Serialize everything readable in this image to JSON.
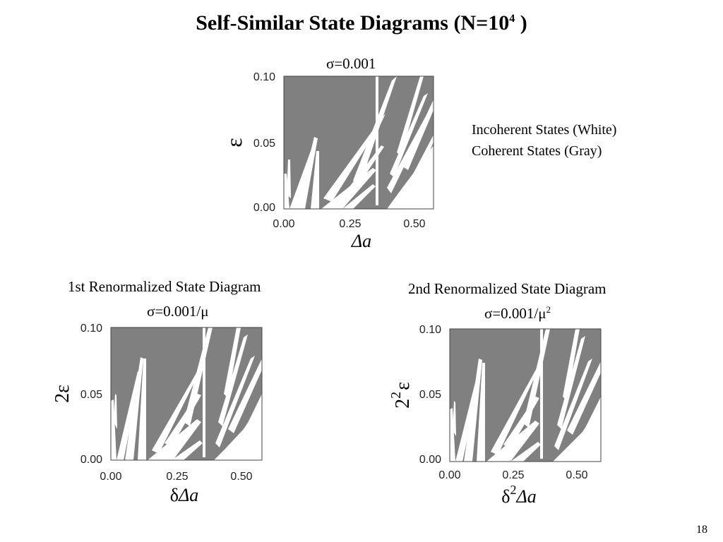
{
  "slide": {
    "title_main": "Self-Similar State Diagrams (N=10",
    "title_exp": "4",
    "title_end": " )",
    "page_number": "18"
  },
  "legend": {
    "incoherent": "Incoherent States (White)",
    "coherent": "Coherent States (Gray)"
  },
  "colors": {
    "coherent": "#808080",
    "incoherent": "#ffffff",
    "frame": "#444444"
  },
  "diagrams": [
    {
      "id": "top",
      "section_title": "",
      "sigma_main": "σ=0.001",
      "sigma_sup": "",
      "ylabel": "ε",
      "ylabel_prefix": "",
      "ylabel_prefix_sup": "",
      "xlabel_main": "Δa",
      "xlabel_prefix": "",
      "xlabel_prefix_sup": "",
      "xticks": [
        "0.00",
        "0.25",
        "0.50"
      ],
      "yticks": [
        "0.00",
        "0.05",
        "0.10"
      ]
    },
    {
      "id": "first",
      "section_title": "1st Renormalized State Diagram",
      "sigma_main": "σ=0.001/μ",
      "sigma_sup": "",
      "ylabel": "ε",
      "ylabel_prefix": "2",
      "ylabel_prefix_sup": "",
      "xlabel_main": "Δa",
      "xlabel_prefix": "δ",
      "xlabel_prefix_sup": "",
      "xticks": [
        "0.00",
        "0.25",
        "0.50"
      ],
      "yticks": [
        "0.00",
        "0.05",
        "0.10"
      ]
    },
    {
      "id": "second",
      "section_title": "2nd Renormalized State Diagram",
      "sigma_main": "σ=0.001/μ",
      "sigma_sup": "2",
      "ylabel": "ε",
      "ylabel_prefix": "2",
      "ylabel_prefix_sup": "2",
      "xlabel_main": "Δa",
      "xlabel_prefix": "δ",
      "xlabel_prefix_sup": "2",
      "xticks": [
        "0.00",
        "0.25",
        "0.50"
      ],
      "yticks": [
        "0.00",
        "0.05",
        "0.10"
      ]
    }
  ]
}
